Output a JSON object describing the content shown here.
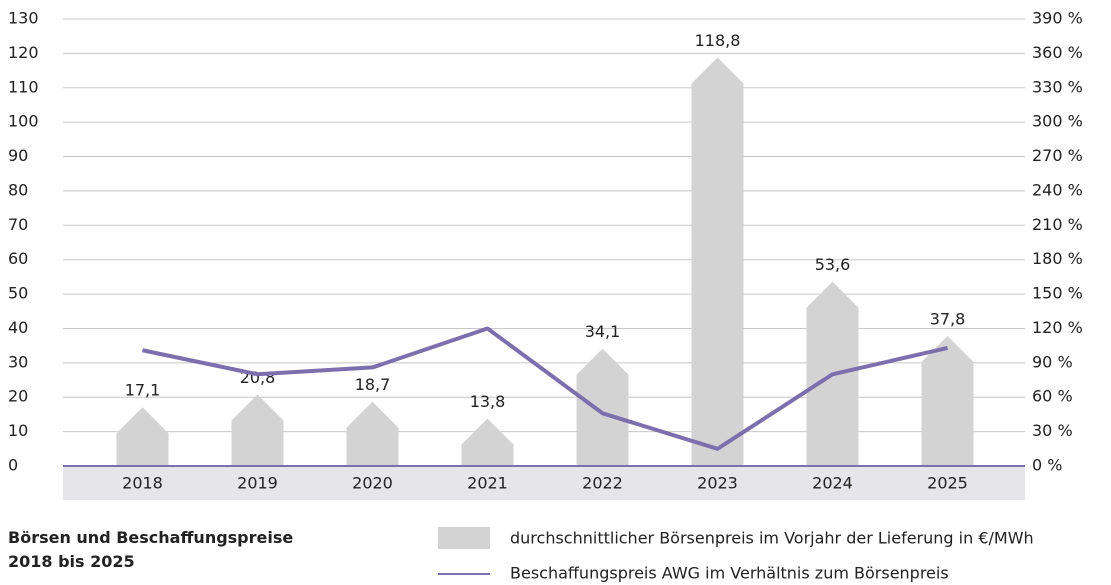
{
  "chart_data": {
    "type": "bar_line",
    "title": "Börsen und Beschaffungspreise 2018 bis 2025",
    "categories": [
      "2018",
      "2019",
      "2020",
      "2021",
      "2022",
      "2023",
      "2024",
      "2025"
    ],
    "series": [
      {
        "name": "durchschnittlicher Börsenpreis im Vorjahr der Lieferung in €/MWh",
        "type": "bar",
        "color": "#d3d3d3",
        "values": [
          17.1,
          20.8,
          18.7,
          13.8,
          34.1,
          118.8,
          53.6,
          37.8
        ],
        "value_labels": [
          "17,1",
          "20,8",
          "18,7",
          "13,8",
          "34,1",
          "118,8",
          "53,6",
          "37,8"
        ]
      },
      {
        "name": "Beschaffungspreis AWG im Verhältnis zum Börsenpreis",
        "type": "line",
        "color": "#7b6fae",
        "axis": "y2",
        "values": [
          101,
          80,
          86,
          120,
          46,
          15,
          80,
          103
        ]
      }
    ],
    "ylim": [
      0,
      130
    ],
    "yticks": [
      0,
      10,
      20,
      30,
      40,
      50,
      60,
      70,
      80,
      90,
      100,
      110,
      120,
      130
    ],
    "y2lim": [
      0,
      390
    ],
    "y2ticks": [
      {
        "value": 0,
        "label": "0 %"
      },
      {
        "value": 30,
        "label": "30 %"
      },
      {
        "value": 60,
        "label": "60 %"
      },
      {
        "value": 90,
        "label": "90 %"
      },
      {
        "value": 120,
        "label": "120 %"
      },
      {
        "value": 150,
        "label": "150 %"
      },
      {
        "value": 180,
        "label": "180 %"
      },
      {
        "value": 210,
        "label": "210 %"
      },
      {
        "value": 240,
        "label": "240 %"
      },
      {
        "value": 270,
        "label": "270 %"
      },
      {
        "value": 300,
        "label": "300 %"
      },
      {
        "value": 330,
        "label": "330 %"
      },
      {
        "value": 360,
        "label": "360 %"
      },
      {
        "value": 390,
        "label": "390 %"
      }
    ],
    "grid": true
  }
}
